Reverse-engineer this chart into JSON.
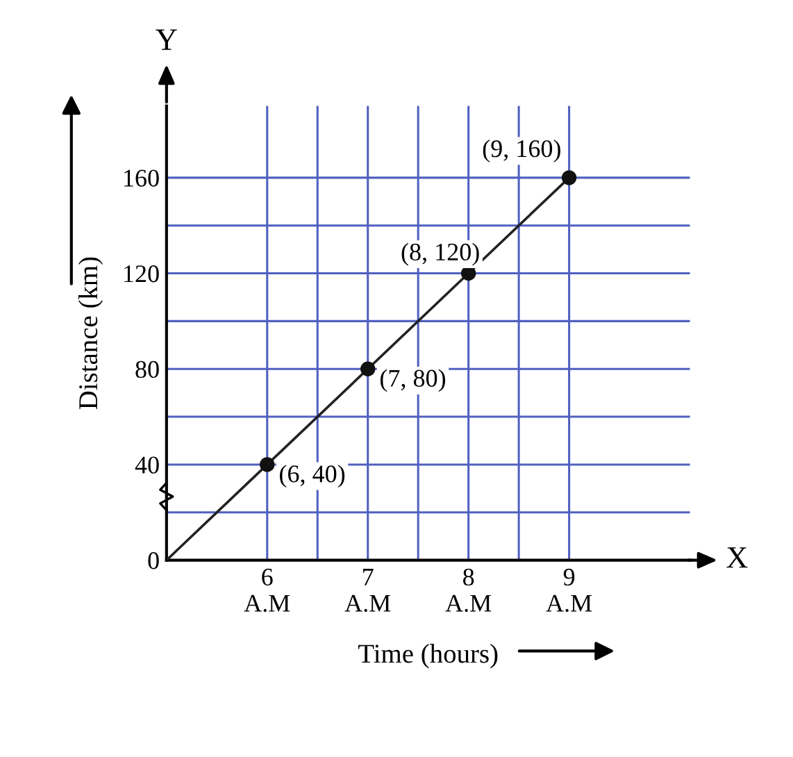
{
  "chart_data": {
    "type": "line",
    "xlabel": "Time (hours)",
    "ylabel": "Distance (km)",
    "series": [
      {
        "color": "#222222",
        "x": [
          5,
          6,
          7,
          8,
          9
        ],
        "values": [
          0,
          40,
          80,
          120,
          160
        ],
        "marker": "none"
      },
      {
        "type": "scatter",
        "color": "#111111",
        "x": [
          6,
          7,
          8,
          9
        ],
        "values": [
          40,
          80,
          120,
          160
        ],
        "marker": "circle"
      }
    ],
    "xlim": [
      5,
      10.2
    ],
    "ylim": [
      0,
      190
    ],
    "xticks": [
      {
        "value": 6,
        "label": "6\nA.M"
      },
      {
        "value": 6.5,
        "label": null
      },
      {
        "value": 7,
        "label": "7\nA.M"
      },
      {
        "value": 7.5,
        "label": null
      },
      {
        "value": 8,
        "label": "8\nA.M"
      },
      {
        "value": 8.5,
        "label": null
      },
      {
        "value": 9,
        "label": "9\nA.M"
      }
    ],
    "yticks": [
      0,
      {
        "value": 20,
        "label": null
      },
      40,
      {
        "value": 60,
        "label": null
      },
      80,
      {
        "value": 100,
        "label": null
      },
      120,
      {
        "value": 140,
        "label": null
      },
      160
    ],
    "grid": true,
    "annotations": [
      "X",
      "Y",
      {
        "text": "(6, 40)",
        "x": 6,
        "y": 40
      },
      {
        "text": "(7, 80)",
        "x": 7,
        "y": 80
      },
      {
        "text": "(8, 120)",
        "x": 8,
        "y": 120
      },
      {
        "text": "(9, 160)",
        "x": 9,
        "y": 160
      }
    ]
  }
}
